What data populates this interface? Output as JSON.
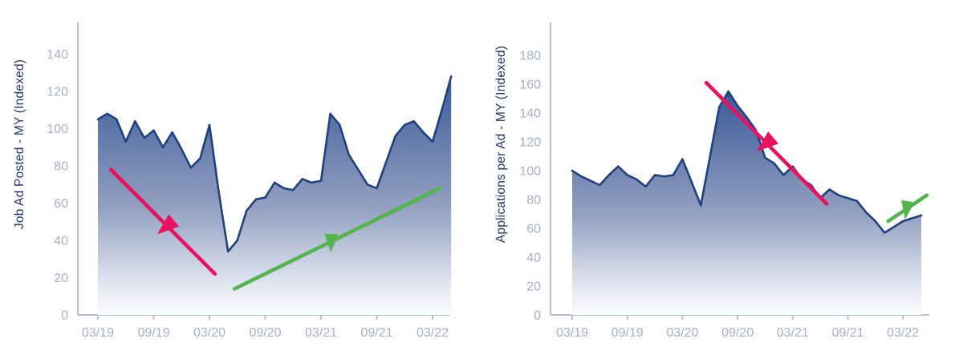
{
  "colors": {
    "line": "#20407e",
    "area_top": "#3a5a99",
    "area_mid": "#93a0c0",
    "area_light": "#e3e8f2",
    "area_bottom": "#fbfcfe",
    "axis": "#b6c1d5",
    "tick_label": "#a4b1c9",
    "axis_title": "#22356f",
    "pink": "#e81162",
    "green": "#53b54d"
  },
  "chart_data": [
    {
      "type": "area",
      "title": "",
      "y_axis_title": "Job Ad Posted - MY (Indexed)",
      "xlabel": "",
      "ylabel": "Job Ad Posted - MY (Indexed)",
      "grid": false,
      "legend": null,
      "ylim": [
        0,
        156
      ],
      "x": [
        "03/19",
        "04/19",
        "05/19",
        "06/19",
        "07/19",
        "08/19",
        "09/19",
        "10/19",
        "11/19",
        "12/19",
        "01/20",
        "02/20",
        "03/20",
        "04/20",
        "05/20",
        "06/20",
        "07/20",
        "08/20",
        "09/20",
        "10/20",
        "11/20",
        "12/20",
        "01/21",
        "02/21",
        "03/21",
        "04/21",
        "05/21",
        "06/21",
        "07/21",
        "08/21",
        "09/21",
        "10/21",
        "11/21",
        "12/21",
        "01/22",
        "02/22",
        "03/22",
        "04/22",
        "05/22"
      ],
      "values": [
        105,
        108,
        105,
        93,
        104,
        95,
        99,
        90,
        98,
        89,
        79,
        84,
        102,
        66,
        34,
        40,
        56,
        62,
        63,
        71,
        68,
        67,
        73,
        71,
        72,
        108,
        102,
        86,
        78,
        70,
        68,
        82,
        96,
        102,
        104,
        98,
        93,
        110,
        128
      ],
      "x_tick_labels": [
        "03/19",
        "09/19",
        "03/20",
        "09/20",
        "03/21",
        "09/21",
        "03/22"
      ],
      "y_ticks": [
        0,
        20,
        40,
        60,
        80,
        100,
        120,
        140
      ],
      "annotations": [
        {
          "name": "downtrend-arrow",
          "color": "pink",
          "from_index": 1.4,
          "from_value": 78,
          "to_index": 12.6,
          "to_value": 22,
          "head_t": 0.54,
          "head_angle_deg": 140
        },
        {
          "name": "uptrend-arrow",
          "color": "green",
          "from_index": 14.7,
          "from_value": 14,
          "to_index": 36.8,
          "to_value": 68,
          "head_t": 0.47,
          "head_angle_deg": 92
        }
      ]
    },
    {
      "type": "area",
      "title": "",
      "y_axis_title": "Applications per Ad - MY (Indexed)",
      "xlabel": "",
      "ylabel": "Applications per Ad - MY (Indexed)",
      "grid": false,
      "legend": null,
      "ylim": [
        0,
        200
      ],
      "x": [
        "03/19",
        "04/19",
        "05/19",
        "06/19",
        "07/19",
        "08/19",
        "09/19",
        "10/19",
        "11/19",
        "12/19",
        "01/20",
        "02/20",
        "03/20",
        "04/20",
        "05/20",
        "06/20",
        "07/20",
        "08/20",
        "09/20",
        "10/20",
        "11/20",
        "12/20",
        "01/21",
        "02/21",
        "03/21",
        "04/21",
        "05/21",
        "06/21",
        "07/21",
        "08/21",
        "09/21",
        "10/21",
        "11/21",
        "12/21",
        "01/22",
        "02/22",
        "03/22",
        "04/22",
        "05/22"
      ],
      "values": [
        100,
        96,
        93,
        90,
        97,
        103,
        97,
        94,
        89,
        97,
        96,
        97,
        108,
        92,
        76,
        110,
        144,
        155,
        145,
        137,
        128,
        109,
        105,
        97,
        103,
        94,
        90,
        81,
        87,
        83,
        81,
        79,
        71,
        65,
        57,
        61,
        65,
        67,
        69
      ],
      "x_tick_labels": [
        "03/19",
        "09/19",
        "03/20",
        "09/20",
        "03/21",
        "09/21",
        "03/22"
      ],
      "y_ticks": [
        0,
        20,
        40,
        60,
        80,
        100,
        120,
        140,
        160,
        180
      ],
      "annotations": [
        {
          "name": "downtrend-arrow",
          "color": "pink",
          "from_index": 14.6,
          "from_value": 161,
          "to_index": 27.7,
          "to_value": 77,
          "head_t": 0.5,
          "head_angle_deg": 140
        },
        {
          "name": "uptrend-arrow",
          "color": "green",
          "from_index": 34.4,
          "from_value": 65,
          "to_index": 38.6,
          "to_value": 83,
          "head_t": 0.48,
          "head_angle_deg": 100
        }
      ]
    }
  ]
}
